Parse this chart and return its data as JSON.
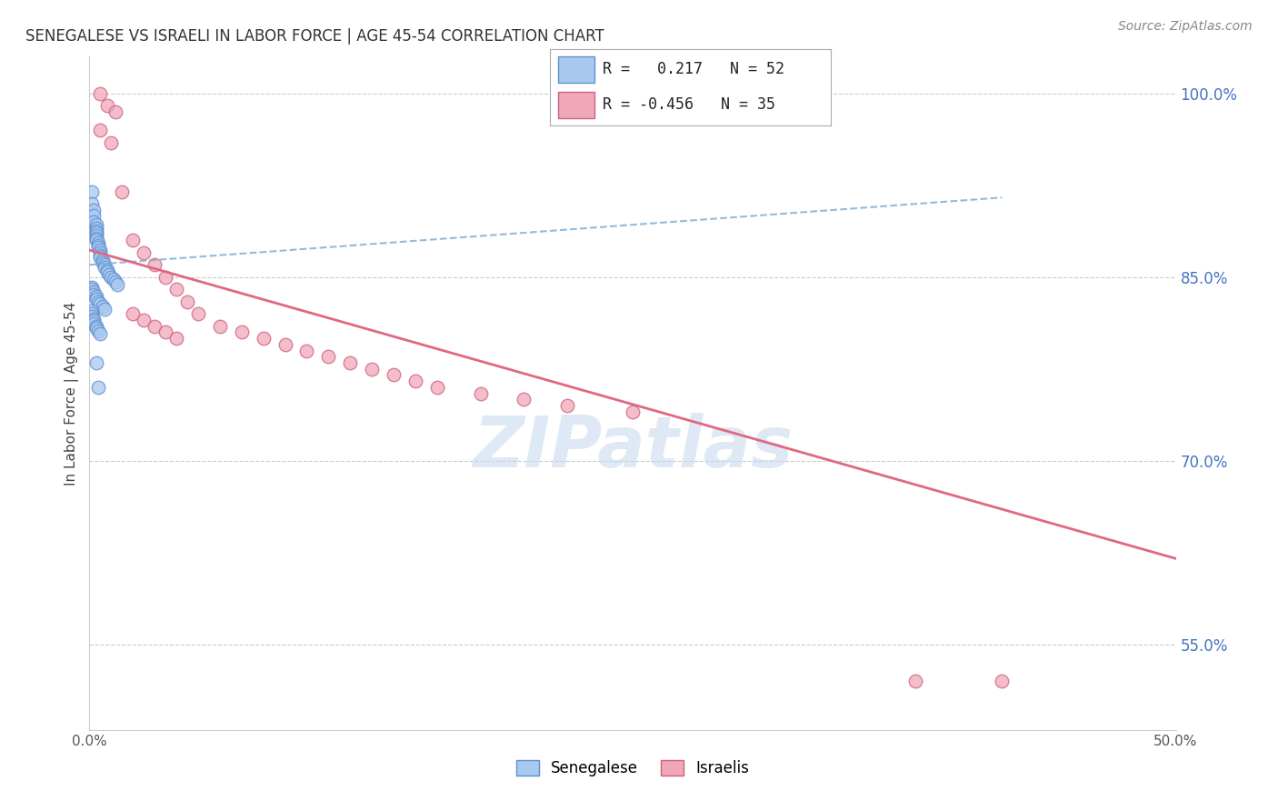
{
  "title": "SENEGALESE VS ISRAELI IN LABOR FORCE | AGE 45-54 CORRELATION CHART",
  "source": "Source: ZipAtlas.com",
  "ylabel": "In Labor Force | Age 45-54",
  "xlim": [
    0.0,
    0.5
  ],
  "ylim": [
    0.48,
    1.03
  ],
  "xticks": [
    0.0,
    0.05,
    0.1,
    0.15,
    0.2,
    0.25,
    0.3,
    0.35,
    0.4,
    0.45,
    0.5
  ],
  "xticklabels": [
    "0.0%",
    "",
    "",
    "",
    "",
    "",
    "",
    "",
    "",
    "",
    "50.0%"
  ],
  "yticklabels_right": [
    "55.0%",
    "70.0%",
    "85.0%",
    "100.0%"
  ],
  "yticks_right": [
    0.55,
    0.7,
    0.85,
    1.0
  ],
  "grid_color": "#cccccc",
  "background_color": "#ffffff",
  "senegalese_color": "#a8c8f0",
  "israelis_color": "#f0a8b8",
  "senegalese_edge_color": "#6090d0",
  "israelis_edge_color": "#d06080",
  "blue_line_color": "#7aaad0",
  "pink_line_color": "#e06880",
  "R_senegalese": 0.217,
  "N_senegalese": 52,
  "R_israelis": -0.456,
  "N_israelis": 35,
  "legend_labels": [
    "Senegalese",
    "Israelis"
  ],
  "watermark": "ZIPatlas",
  "senegalese_x": [
    0.001,
    0.001,
    0.002,
    0.002,
    0.002,
    0.003,
    0.003,
    0.003,
    0.003,
    0.003,
    0.003,
    0.003,
    0.004,
    0.004,
    0.004,
    0.005,
    0.005,
    0.005,
    0.005,
    0.006,
    0.006,
    0.007,
    0.007,
    0.008,
    0.008,
    0.009,
    0.01,
    0.011,
    0.012,
    0.013,
    0.001,
    0.001,
    0.002,
    0.002,
    0.003,
    0.003,
    0.004,
    0.005,
    0.006,
    0.007,
    0.001,
    0.001,
    0.001,
    0.002,
    0.002,
    0.002,
    0.003,
    0.003,
    0.004,
    0.005,
    0.003,
    0.004
  ],
  "senegalese_y": [
    0.92,
    0.91,
    0.905,
    0.9,
    0.895,
    0.893,
    0.89,
    0.888,
    0.886,
    0.884,
    0.882,
    0.88,
    0.878,
    0.876,
    0.874,
    0.872,
    0.87,
    0.868,
    0.866,
    0.864,
    0.862,
    0.86,
    0.858,
    0.856,
    0.854,
    0.852,
    0.85,
    0.848,
    0.846,
    0.844,
    0.842,
    0.84,
    0.838,
    0.836,
    0.834,
    0.832,
    0.83,
    0.828,
    0.826,
    0.824,
    0.822,
    0.82,
    0.818,
    0.816,
    0.814,
    0.812,
    0.81,
    0.808,
    0.806,
    0.804,
    0.78,
    0.76
  ],
  "israelis_x": [
    0.005,
    0.01,
    0.015,
    0.02,
    0.025,
    0.03,
    0.035,
    0.04,
    0.045,
    0.05,
    0.06,
    0.07,
    0.08,
    0.09,
    0.1,
    0.11,
    0.12,
    0.13,
    0.14,
    0.15,
    0.16,
    0.18,
    0.2,
    0.22,
    0.25,
    0.02,
    0.025,
    0.03,
    0.035,
    0.04,
    0.38,
    0.42,
    0.005,
    0.008,
    0.012
  ],
  "israelis_y": [
    0.97,
    0.96,
    0.92,
    0.88,
    0.87,
    0.86,
    0.85,
    0.84,
    0.83,
    0.82,
    0.81,
    0.805,
    0.8,
    0.795,
    0.79,
    0.785,
    0.78,
    0.775,
    0.77,
    0.765,
    0.76,
    0.755,
    0.75,
    0.745,
    0.74,
    0.82,
    0.815,
    0.81,
    0.805,
    0.8,
    0.52,
    0.52,
    1.0,
    0.99,
    0.985
  ],
  "blue_trendline_x": [
    0.0,
    0.42
  ],
  "blue_trendline_y": [
    0.86,
    0.915
  ],
  "pink_trendline_x": [
    0.0,
    0.5
  ],
  "pink_trendline_y": [
    0.872,
    0.62
  ]
}
